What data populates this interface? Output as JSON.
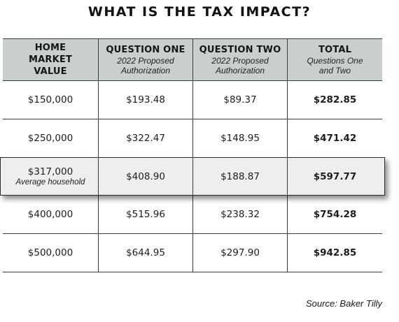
{
  "title": "WHAT IS THE TAX IMPACT?",
  "header": {
    "col1": {
      "main": "HOME MARKET VALUE"
    },
    "col2": {
      "main": "QUESTION ONE",
      "sub": "2022 Proposed Authorization"
    },
    "col3": {
      "main": "QUESTION TWO",
      "sub": "2022 Proposed Authorization"
    },
    "col4": {
      "main": "TOTAL",
      "sub": "Questions One and Two"
    }
  },
  "rows": [
    {
      "home_value": "$150,000",
      "q1": "$193.48",
      "q2": "$89.37",
      "total": "$282.85"
    },
    {
      "home_value": "$250,000",
      "q1": "$322.47",
      "q2": "$148.95",
      "total": "$471.42"
    },
    {
      "home_value": "$317,000",
      "home_note": "Average household",
      "q1": "$408.90",
      "q2": "$188.87",
      "total": "$597.77",
      "highlighted": true
    },
    {
      "home_value": "$400,000",
      "q1": "$515.96",
      "q2": "$238.32",
      "total": "$754.28"
    },
    {
      "home_value": "$500,000",
      "q1": "$644.95",
      "q2": "$297.90",
      "total": "$942.85"
    }
  ],
  "source": "Source: Baker Tilly",
  "colors": {
    "header_bg": "#c9cfcc",
    "highlight_bg": "#eeeeee",
    "rule": "#3a3a3a"
  }
}
